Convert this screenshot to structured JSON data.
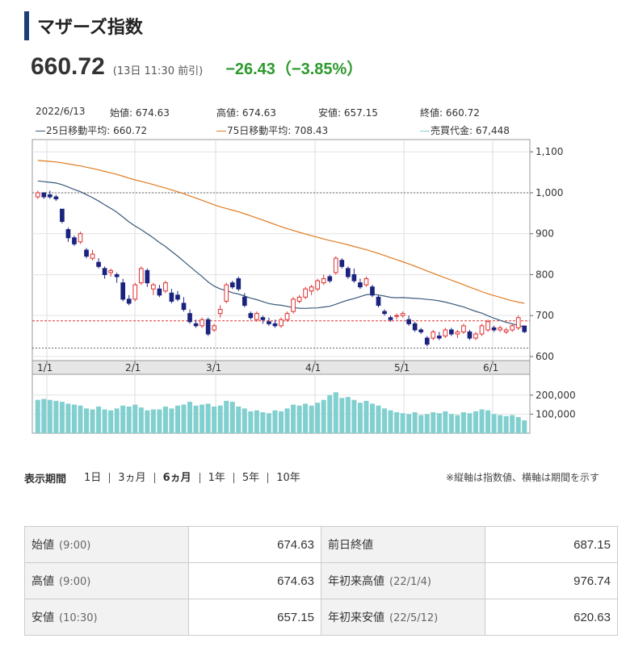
{
  "header": {
    "title": "マザーズ指数",
    "price": "660.72",
    "time": "(13日 11:30 前引)",
    "change": "−26.43（−3.85%）"
  },
  "ohlc_info": {
    "date": "2022/6/13",
    "open": "始値: 674.63",
    "high": "高値: 674.63",
    "low": "安値: 657.15",
    "close": "終値: 660.72",
    "ma25": "25日移動平均: 660.72",
    "ma75": "75日移動平均: 708.43",
    "volume": "売買代金: 67,448"
  },
  "colors": {
    "up": "#e03030",
    "down": "#1a237e",
    "ma25": "#3a5a7a",
    "ma75": "#e07b20",
    "volume": "#82cfcf",
    "accent": "#1c3f75",
    "change": "#2e9a2e"
  },
  "chart_data": {
    "type": "candlestick",
    "x_labels": [
      "1/1",
      "2/1",
      "3/1",
      "4/1",
      "5/1",
      "6/1"
    ],
    "price_ticks": [
      "1,100",
      "1,000",
      "900",
      "800",
      "700",
      "600"
    ],
    "price_tick_values": [
      1100,
      1000,
      900,
      800,
      700,
      600
    ],
    "volume_ticks": [
      "200,000",
      "100,000"
    ],
    "volume_tick_values": [
      200000,
      100000
    ],
    "ylim": [
      590,
      1130
    ],
    "vlim": [
      0,
      250000
    ],
    "reference_lines": [
      1000,
      687.15,
      620.63
    ],
    "candles": [
      [
        990,
        1005,
        985,
        1000
      ],
      [
        1000,
        1000,
        985,
        990
      ],
      [
        995,
        1005,
        985,
        990
      ],
      [
        990,
        995,
        980,
        985
      ],
      [
        960,
        960,
        925,
        930
      ],
      [
        910,
        915,
        880,
        890
      ],
      [
        890,
        895,
        870,
        875
      ],
      [
        880,
        905,
        875,
        900
      ],
      [
        860,
        865,
        840,
        845
      ],
      [
        840,
        860,
        835,
        850
      ],
      [
        830,
        840,
        815,
        820
      ],
      [
        815,
        820,
        790,
        800
      ],
      [
        805,
        815,
        795,
        810
      ],
      [
        800,
        805,
        780,
        795
      ],
      [
        780,
        790,
        735,
        740
      ],
      [
        740,
        750,
        725,
        730
      ],
      [
        740,
        780,
        735,
        775
      ],
      [
        780,
        820,
        775,
        815
      ],
      [
        810,
        815,
        770,
        780
      ],
      [
        765,
        780,
        750,
        775
      ],
      [
        765,
        775,
        745,
        750
      ],
      [
        760,
        785,
        755,
        780
      ],
      [
        755,
        765,
        730,
        735
      ],
      [
        750,
        760,
        735,
        740
      ],
      [
        730,
        745,
        710,
        715
      ],
      [
        705,
        715,
        680,
        685
      ],
      [
        680,
        690,
        670,
        675
      ],
      [
        675,
        695,
        670,
        690
      ],
      [
        690,
        695,
        650,
        655
      ],
      [
        665,
        680,
        660,
        675
      ],
      [
        705,
        725,
        695,
        715
      ],
      [
        735,
        780,
        730,
        775
      ],
      [
        780,
        785,
        765,
        770
      ],
      [
        790,
        795,
        760,
        765
      ],
      [
        745,
        755,
        720,
        725
      ],
      [
        705,
        710,
        690,
        695
      ],
      [
        690,
        710,
        685,
        705
      ],
      [
        695,
        700,
        680,
        690
      ],
      [
        685,
        695,
        675,
        680
      ],
      [
        680,
        690,
        670,
        675
      ],
      [
        675,
        695,
        670,
        690
      ],
      [
        690,
        710,
        685,
        705
      ],
      [
        710,
        745,
        705,
        740
      ],
      [
        735,
        750,
        730,
        745
      ],
      [
        745,
        770,
        740,
        765
      ],
      [
        760,
        775,
        750,
        770
      ],
      [
        765,
        790,
        760,
        785
      ],
      [
        780,
        800,
        775,
        790
      ],
      [
        795,
        800,
        780,
        785
      ],
      [
        805,
        845,
        800,
        840
      ],
      [
        835,
        840,
        815,
        820
      ],
      [
        815,
        820,
        790,
        795
      ],
      [
        800,
        815,
        780,
        785
      ],
      [
        780,
        790,
        765,
        770
      ],
      [
        775,
        795,
        770,
        790
      ],
      [
        770,
        775,
        745,
        750
      ],
      [
        745,
        750,
        720,
        725
      ],
      [
        710,
        715,
        700,
        705
      ],
      [
        695,
        700,
        685,
        690
      ],
      [
        700,
        705,
        690,
        700
      ],
      [
        700,
        710,
        695,
        705
      ],
      [
        690,
        700,
        675,
        680
      ],
      [
        680,
        685,
        660,
        665
      ],
      [
        665,
        670,
        655,
        660
      ],
      [
        645,
        650,
        625,
        630
      ],
      [
        645,
        665,
        640,
        660
      ],
      [
        650,
        660,
        640,
        645
      ],
      [
        650,
        670,
        645,
        665
      ],
      [
        665,
        670,
        650,
        655
      ],
      [
        655,
        665,
        645,
        660
      ],
      [
        660,
        680,
        655,
        675
      ],
      [
        660,
        665,
        640,
        645
      ],
      [
        645,
        660,
        640,
        655
      ],
      [
        655,
        680,
        650,
        675
      ],
      [
        665,
        690,
        660,
        685
      ],
      [
        670,
        675,
        660,
        665
      ],
      [
        665,
        675,
        660,
        670
      ],
      [
        660,
        670,
        655,
        665
      ],
      [
        665,
        680,
        660,
        675
      ],
      [
        670,
        700,
        665,
        695
      ],
      [
        674.63,
        674.63,
        657.15,
        660.72
      ]
    ],
    "volumes": [
      175000,
      180000,
      175000,
      170000,
      165000,
      155000,
      150000,
      145000,
      130000,
      125000,
      140000,
      125000,
      120000,
      130000,
      145000,
      140000,
      150000,
      135000,
      120000,
      125000,
      125000,
      140000,
      130000,
      145000,
      150000,
      165000,
      145000,
      150000,
      155000,
      140000,
      145000,
      170000,
      165000,
      140000,
      130000,
      115000,
      120000,
      110000,
      105000,
      120000,
      115000,
      130000,
      150000,
      145000,
      155000,
      145000,
      160000,
      175000,
      200000,
      215000,
      185000,
      190000,
      175000,
      160000,
      170000,
      155000,
      145000,
      130000,
      120000,
      110000,
      105000,
      100000,
      110000,
      95000,
      100000,
      110000,
      105000,
      115000,
      100000,
      95000,
      110000,
      105000,
      115000,
      125000,
      120000,
      100000,
      95000,
      90000,
      95000,
      85000,
      67448
    ]
  },
  "period": {
    "label": "表示期間",
    "options": [
      "1日",
      "3ヵ月",
      "6ヵ月",
      "1年",
      "5年",
      "10年"
    ],
    "active_index": 2,
    "note": "※縦軸は指数値、横軸は期間を示す"
  },
  "stats": {
    "rows": [
      {
        "k1": "始値",
        "s1": "(9:00)",
        "v1": "674.63",
        "k2": "前日終値",
        "s2": "",
        "v2": "687.15"
      },
      {
        "k1": "高値",
        "s1": "(9:00)",
        "v1": "674.63",
        "k2": "年初来高値",
        "s2": "(22/1/4)",
        "v2": "976.74"
      },
      {
        "k1": "安値",
        "s1": "(10:30)",
        "v1": "657.15",
        "k2": "年初来安値",
        "s2": "(22/5/12)",
        "v2": "620.63"
      }
    ]
  }
}
